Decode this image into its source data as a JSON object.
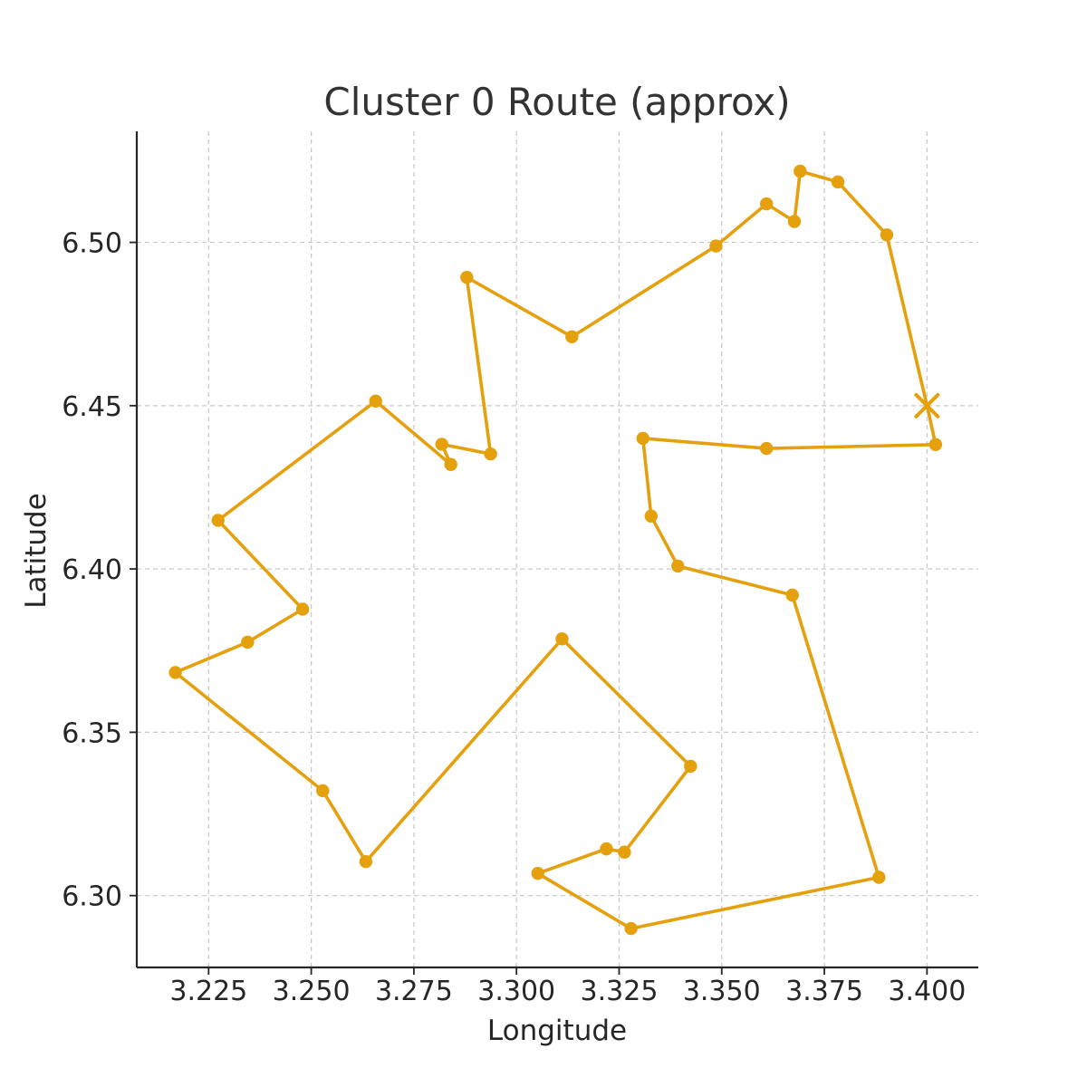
{
  "chart_data": {
    "type": "line",
    "title": "Cluster 0 Route (approx)",
    "xlabel": "Longitude",
    "ylabel": "Latitude",
    "xlim": [
      3.2075,
      3.4125
    ],
    "ylim": [
      6.278,
      6.534
    ],
    "x_ticks": [
      3.225,
      3.25,
      3.275,
      3.3,
      3.325,
      3.35,
      3.375,
      3.4
    ],
    "x_tick_labels": [
      "3.225",
      "3.250",
      "3.275",
      "3.300",
      "3.325",
      "3.350",
      "3.375",
      "3.400"
    ],
    "y_ticks": [
      6.3,
      6.35,
      6.4,
      6.45,
      6.5
    ],
    "y_tick_labels": [
      "6.30",
      "6.35",
      "6.40",
      "6.45",
      "6.50"
    ],
    "grid": true,
    "color": "#E5A00D",
    "depot": {
      "x": 3.4,
      "y": 6.45,
      "marker": "x"
    },
    "route": [
      {
        "x": 3.4,
        "y": 6.45
      },
      {
        "x": 3.3902,
        "y": 6.5023
      },
      {
        "x": 3.3783,
        "y": 6.5185
      },
      {
        "x": 3.3691,
        "y": 6.5218
      },
      {
        "x": 3.3677,
        "y": 6.5064
      },
      {
        "x": 3.3609,
        "y": 6.5118
      },
      {
        "x": 3.3486,
        "y": 6.4989
      },
      {
        "x": 3.3135,
        "y": 6.4711
      },
      {
        "x": 3.2879,
        "y": 6.4893
      },
      {
        "x": 3.2937,
        "y": 6.4352
      },
      {
        "x": 3.2818,
        "y": 6.4382
      },
      {
        "x": 3.284,
        "y": 6.432
      },
      {
        "x": 3.2657,
        "y": 6.4514
      },
      {
        "x": 3.2273,
        "y": 6.4149
      },
      {
        "x": 3.2479,
        "y": 6.3877
      },
      {
        "x": 3.2345,
        "y": 6.3776
      },
      {
        "x": 3.2169,
        "y": 6.3683
      },
      {
        "x": 3.2528,
        "y": 6.3321
      },
      {
        "x": 3.2633,
        "y": 6.3104
      },
      {
        "x": 3.3111,
        "y": 6.3786
      },
      {
        "x": 3.3424,
        "y": 6.3396
      },
      {
        "x": 3.3263,
        "y": 6.3133
      },
      {
        "x": 3.3219,
        "y": 6.3143
      },
      {
        "x": 3.3052,
        "y": 6.3068
      },
      {
        "x": 3.3279,
        "y": 6.2899
      },
      {
        "x": 3.3883,
        "y": 6.3056
      },
      {
        "x": 3.3672,
        "y": 6.392
      },
      {
        "x": 3.3393,
        "y": 6.4009
      },
      {
        "x": 3.3328,
        "y": 6.4162
      },
      {
        "x": 3.3308,
        "y": 6.44
      },
      {
        "x": 3.3609,
        "y": 6.4369
      },
      {
        "x": 3.4021,
        "y": 6.4381
      },
      {
        "x": 3.4,
        "y": 6.45
      }
    ]
  }
}
